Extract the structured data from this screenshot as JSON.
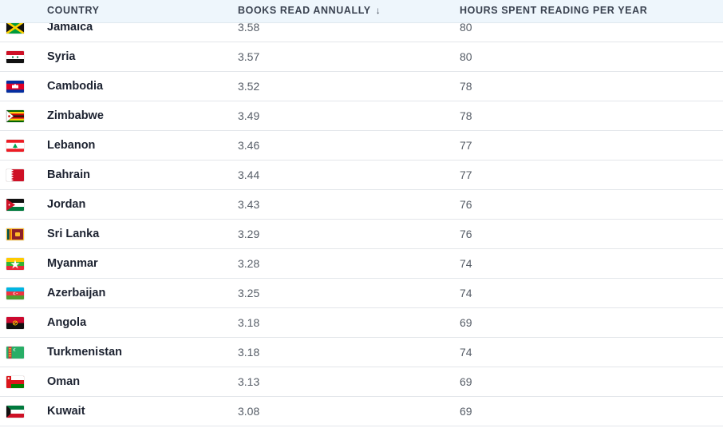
{
  "header": {
    "country": "COUNTRY",
    "books": "BOOKS READ ANNUALLY",
    "hours": "HOURS SPENT READING PER YEAR",
    "sort_icon": "↓"
  },
  "rows": [
    {
      "country": "Jamaica",
      "books": "3.58",
      "hours": "80",
      "flag_icon": "jamaica-flag-icon"
    },
    {
      "country": "Syria",
      "books": "3.57",
      "hours": "80",
      "flag_icon": "syria-flag-icon"
    },
    {
      "country": "Cambodia",
      "books": "3.52",
      "hours": "78",
      "flag_icon": "cambodia-flag-icon"
    },
    {
      "country": "Zimbabwe",
      "books": "3.49",
      "hours": "78",
      "flag_icon": "zimbabwe-flag-icon"
    },
    {
      "country": "Lebanon",
      "books": "3.46",
      "hours": "77",
      "flag_icon": "lebanon-flag-icon"
    },
    {
      "country": "Bahrain",
      "books": "3.44",
      "hours": "77",
      "flag_icon": "bahrain-flag-icon"
    },
    {
      "country": "Jordan",
      "books": "3.43",
      "hours": "76",
      "flag_icon": "jordan-flag-icon"
    },
    {
      "country": "Sri Lanka",
      "books": "3.29",
      "hours": "76",
      "flag_icon": "sri-lanka-flag-icon"
    },
    {
      "country": "Myanmar",
      "books": "3.28",
      "hours": "74",
      "flag_icon": "myanmar-flag-icon"
    },
    {
      "country": "Azerbaijan",
      "books": "3.25",
      "hours": "74",
      "flag_icon": "azerbaijan-flag-icon"
    },
    {
      "country": "Angola",
      "books": "3.18",
      "hours": "69",
      "flag_icon": "angola-flag-icon"
    },
    {
      "country": "Turkmenistan",
      "books": "3.18",
      "hours": "74",
      "flag_icon": "turkmenistan-flag-icon"
    },
    {
      "country": "Oman",
      "books": "3.13",
      "hours": "69",
      "flag_icon": "oman-flag-icon"
    },
    {
      "country": "Kuwait",
      "books": "3.08",
      "hours": "69",
      "flag_icon": "kuwait-flag-icon"
    }
  ]
}
